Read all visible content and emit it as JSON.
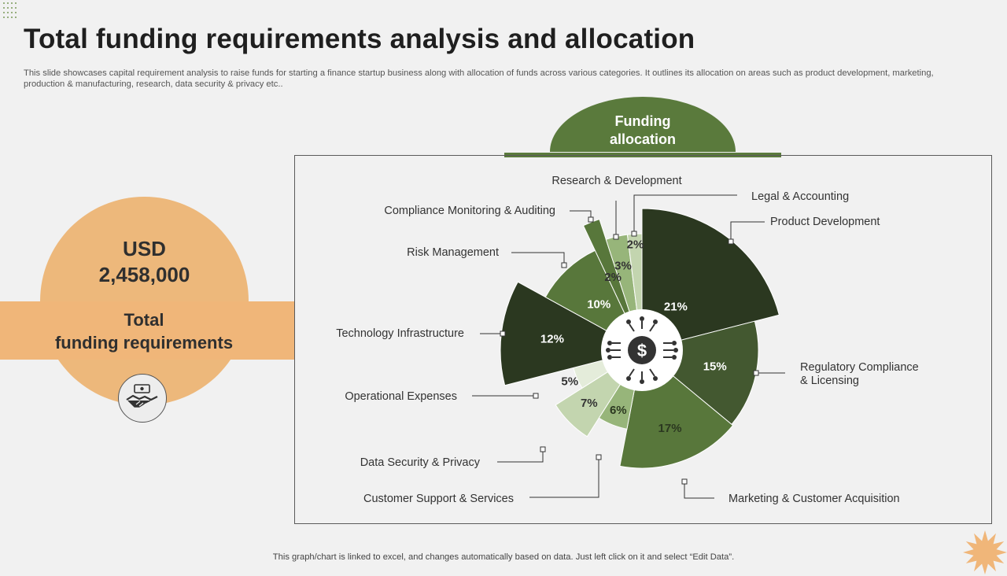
{
  "page": {
    "title": "Total funding requirements analysis and allocation",
    "description": "This slide showcases capital requirement analysis to raise funds for starting a finance startup business along with allocation of funds across various categories. It outlines its allocation on areas such as product development, marketing, production & manufacturing, research, data security & privacy etc..",
    "footer": "This graph/chart is linked to excel,  and changes automatically based on data. Just left click on it and select “Edit Data”."
  },
  "left_panel": {
    "currency": "USD",
    "amount": "2,458,000",
    "label_line1": "Total",
    "label_line2": "funding requirements",
    "icon": "handshake-money-icon"
  },
  "chart_header": {
    "line1": "Funding",
    "line2": "allocation"
  },
  "center_icon": "dollar-circuit-icon",
  "colors": {
    "accent_green": "#5a7a3c",
    "dark_green": "#2b3820",
    "orange": "#edb87b",
    "starburst": "#f0b679"
  },
  "chart_data": {
    "type": "pie",
    "subtype": "variable-radius",
    "slices": [
      {
        "label": "Product Development",
        "value": 21,
        "display": "21%",
        "color": "#2b3820"
      },
      {
        "label": "Regulatory Compliance & Licensing",
        "value": 15,
        "display": "15%",
        "color": "#435830"
      },
      {
        "label": "Marketing & Customer Acquisition",
        "value": 17,
        "display": "17%",
        "color": "#58773b"
      },
      {
        "label": "Customer Support & Services",
        "value": 6,
        "display": "6%",
        "color": "#97b57a"
      },
      {
        "label": "Data Security & Privacy",
        "value": 7,
        "display": "7%",
        "color": "#c3d5af"
      },
      {
        "label": "Operational Expenses",
        "value": 5,
        "display": "5%",
        "color": "#e4ecda"
      },
      {
        "label": "Technology Infrastructure",
        "value": 12,
        "display": "12%",
        "color": "#2b3820"
      },
      {
        "label": "Risk Management",
        "value": 10,
        "display": "10%",
        "color": "#58773b"
      },
      {
        "label": "Compliance Monitoring & Auditing",
        "value": 2,
        "display": "2%",
        "color": "#58773b"
      },
      {
        "label": "Research & Development",
        "value": 3,
        "display": "3%",
        "color": "#97b57a"
      },
      {
        "label": "Legal & Accounting",
        "value": 2,
        "display": "2%",
        "color": "#c3d5af"
      }
    ]
  }
}
